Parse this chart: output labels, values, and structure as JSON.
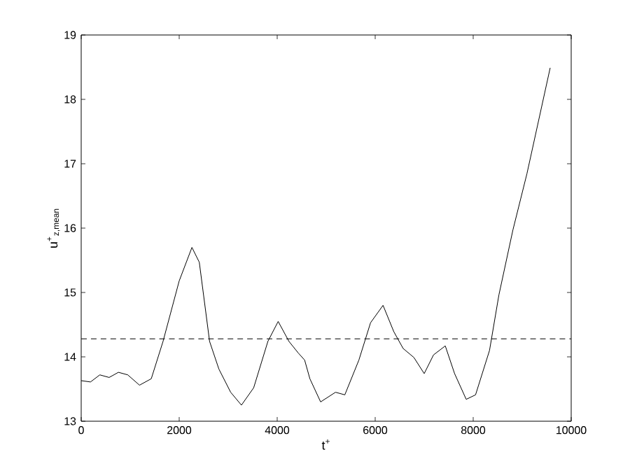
{
  "chart_data": {
    "type": "line",
    "xlabel": "t$^{+}$",
    "ylabel": "u$^{+}$$_{z,mean}$",
    "xlim": [
      0,
      10000
    ],
    "ylim": [
      13,
      19
    ],
    "xticks": [
      0,
      2000,
      4000,
      6000,
      8000,
      10000
    ],
    "yticks": [
      13,
      14,
      15,
      16,
      17,
      18,
      19
    ],
    "grid": false,
    "series": [
      {
        "color": "#000000",
        "line_style": "solid",
        "x": [
          0,
          190,
          380,
          570,
          760,
          950,
          1190,
          1430,
          1670,
          2000,
          2260,
          2410,
          2620,
          2810,
          3050,
          3270,
          3520,
          3810,
          4020,
          4240,
          4430,
          4560,
          4667,
          4886,
          5190,
          5380,
          5667,
          5905,
          6160,
          6380,
          6570,
          6790,
          7000,
          7190,
          7430,
          7620,
          7857,
          8048,
          8333,
          8524,
          8810,
          9095,
          9571
        ],
        "values": [
          13.63,
          13.61,
          13.72,
          13.68,
          13.76,
          13.72,
          13.56,
          13.66,
          14.24,
          15.18,
          15.7,
          15.47,
          14.24,
          13.81,
          13.45,
          13.25,
          13.52,
          14.24,
          14.55,
          14.24,
          14.06,
          13.95,
          13.66,
          13.3,
          13.45,
          13.41,
          13.95,
          14.53,
          14.8,
          14.39,
          14.13,
          13.99,
          13.74,
          14.03,
          14.17,
          13.74,
          13.34,
          13.41,
          14.1,
          14.96,
          15.97,
          16.84,
          18.49
        ]
      }
    ],
    "ref_lines": [
      {
        "axis": "y",
        "value": 14.28,
        "color": "#000000",
        "line_style": "dashed"
      }
    ]
  }
}
